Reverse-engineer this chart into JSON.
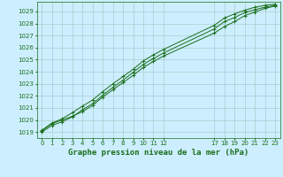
{
  "background_color": "#cceeff",
  "grid_color": "#aacccc",
  "line_color": "#1a6e1a",
  "xlabel": "Graphe pression niveau de la mer (hPa)",
  "xlim": [
    -0.5,
    23.5
  ],
  "ylim": [
    1018.5,
    1029.8
  ],
  "yticks": [
    1019,
    1020,
    1021,
    1022,
    1023,
    1024,
    1025,
    1026,
    1027,
    1028,
    1029
  ],
  "xticks": [
    0,
    1,
    2,
    3,
    4,
    5,
    6,
    7,
    8,
    9,
    10,
    11,
    12,
    17,
    18,
    19,
    20,
    21,
    22,
    23
  ],
  "series1_x": [
    0,
    1,
    2,
    3,
    4,
    5,
    6,
    7,
    8,
    9,
    10,
    11,
    12,
    17,
    18,
    19,
    20,
    21,
    22,
    23
  ],
  "series1_y": [
    1019.1,
    1019.7,
    1020.0,
    1020.3,
    1020.7,
    1021.2,
    1021.9,
    1022.5,
    1023.1,
    1023.7,
    1024.35,
    1024.85,
    1025.3,
    1027.2,
    1027.75,
    1028.15,
    1028.65,
    1028.95,
    1029.25,
    1029.45
  ],
  "series2_x": [
    0,
    1,
    2,
    3,
    4,
    5,
    6,
    7,
    8,
    9,
    10,
    11,
    12,
    17,
    18,
    19,
    20,
    21,
    22,
    23
  ],
  "series2_y": [
    1019.0,
    1019.55,
    1019.85,
    1020.25,
    1020.85,
    1021.35,
    1022.05,
    1022.7,
    1023.3,
    1023.95,
    1024.6,
    1025.1,
    1025.55,
    1027.55,
    1028.15,
    1028.5,
    1028.9,
    1029.15,
    1029.35,
    1029.5
  ],
  "series3_x": [
    0,
    1,
    2,
    3,
    4,
    5,
    6,
    7,
    8,
    9,
    10,
    11,
    12,
    17,
    18,
    19,
    20,
    21,
    22,
    23
  ],
  "series3_y": [
    1019.15,
    1019.75,
    1020.1,
    1020.6,
    1021.15,
    1021.65,
    1022.35,
    1023.0,
    1023.6,
    1024.2,
    1024.9,
    1025.4,
    1025.85,
    1027.85,
    1028.45,
    1028.8,
    1029.1,
    1029.35,
    1029.5,
    1029.6
  ],
  "marker": "+",
  "markersize": 3,
  "linewidth": 0.7,
  "tick_fontsize": 5,
  "tick_color": "#1a6e1a",
  "xlabel_fontsize": 6.5,
  "dpi": 100
}
